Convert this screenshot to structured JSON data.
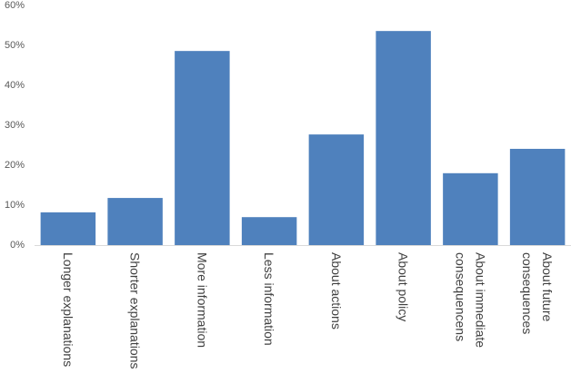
{
  "chart_data": {
    "type": "bar",
    "categories": [
      "Longer explanations",
      "Shorter explanations",
      "More information",
      "Less information",
      "About actions",
      "About policy",
      "About immediate consequencens",
      "About future consequences"
    ],
    "values": [
      8.2,
      11.8,
      48.6,
      7.0,
      27.7,
      53.6,
      18.0,
      24.1
    ],
    "color": "#4f81bd",
    "ylim": [
      0,
      60
    ],
    "yticks": [
      {
        "value": 0,
        "label": "0%"
      },
      {
        "value": 10,
        "label": "10%"
      },
      {
        "value": 20,
        "label": "20%"
      },
      {
        "value": 30,
        "label": "30%"
      },
      {
        "value": 40,
        "label": "40%"
      },
      {
        "value": 50,
        "label": "50%"
      },
      {
        "value": 60,
        "label": "60%"
      }
    ],
    "grid": false
  }
}
